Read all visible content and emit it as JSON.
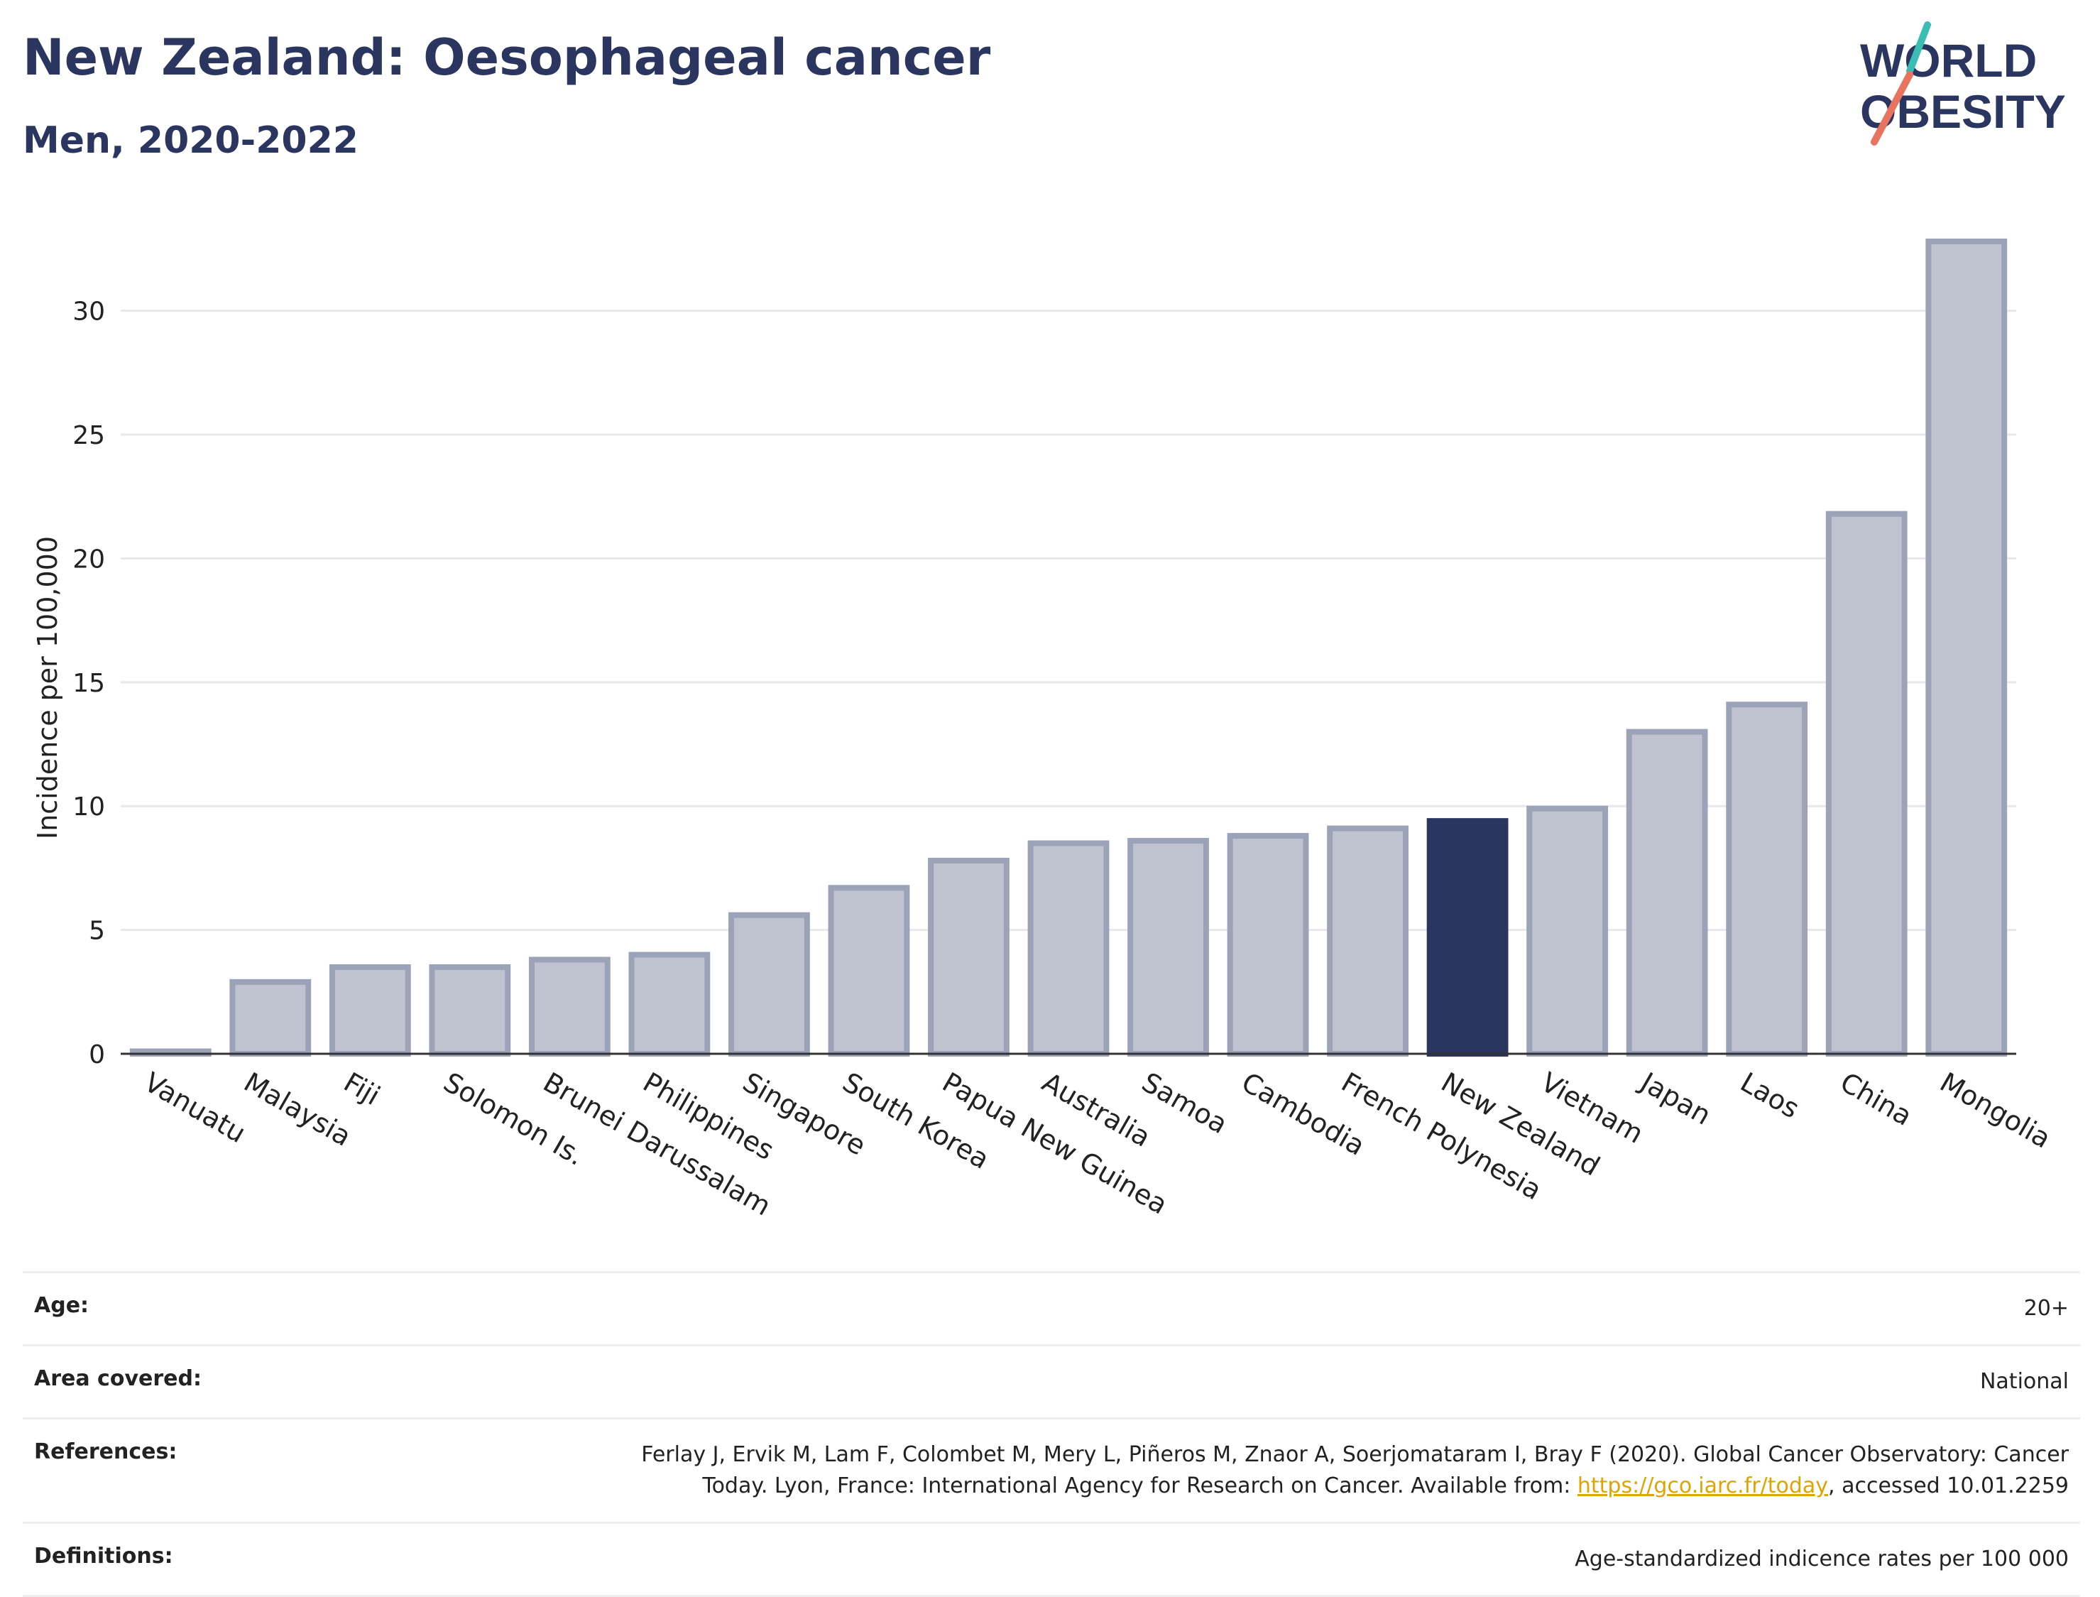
{
  "header": {
    "title": "New Zealand: Oesophageal cancer",
    "subtitle": "Men, 2020-2022"
  },
  "logo": {
    "line1": "WORLD",
    "line2": "OBESITY",
    "colors": {
      "text": "#2a3560",
      "slash_top": "#3bbdb3",
      "slash_bottom": "#e8735f"
    }
  },
  "chart_data": {
    "type": "bar",
    "ylabel": "Incidence per 100,000",
    "ylim": [
      0,
      33
    ],
    "yticks": [
      0,
      5,
      10,
      15,
      20,
      25,
      30
    ],
    "grid": true,
    "highlight": "New Zealand",
    "categories": [
      "Vanuatu",
      "Malaysia",
      "Fiji",
      "Solomon Is.",
      "Brunei Darussalam",
      "Philippines",
      "Singapore",
      "South Korea",
      "Papua New Guinea",
      "Australia",
      "Samoa",
      "Cambodia",
      "French Polynesia",
      "New Zealand",
      "Vietnam",
      "Japan",
      "Laos",
      "China",
      "Mongolia"
    ],
    "values": [
      0.1,
      2.9,
      3.5,
      3.5,
      3.8,
      4.0,
      5.6,
      6.7,
      7.8,
      8.5,
      8.6,
      8.8,
      9.1,
      9.4,
      9.9,
      13.0,
      14.1,
      21.8,
      32.8
    ],
    "colors": {
      "bar": "#bfc3d0",
      "bar_edge": "#9ca2b8",
      "highlight": "#2a3560",
      "grid": "#e8e8ec",
      "axis": "#333333"
    }
  },
  "meta": {
    "age_label": "Age:",
    "age_value": "20+",
    "area_label": "Area covered:",
    "area_value": "National",
    "references_label": "References:",
    "references_line1": "Ferlay J, Ervik M, Lam F, Colombet M, Mery L, Piñeros M, Znaor A, Soerjomataram I, Bray F (2020). Global Cancer Observatory: Cancer",
    "references_line2_pre": "Today. Lyon, France: International Agency for Research on Cancer. Available from: ",
    "references_link": "https://gco.iarc.fr/today",
    "references_line2_post": ", accessed 10.01.2259",
    "definitions_label": "Definitions:",
    "definitions_value": "Age-standardized indicence rates per 100 000"
  }
}
